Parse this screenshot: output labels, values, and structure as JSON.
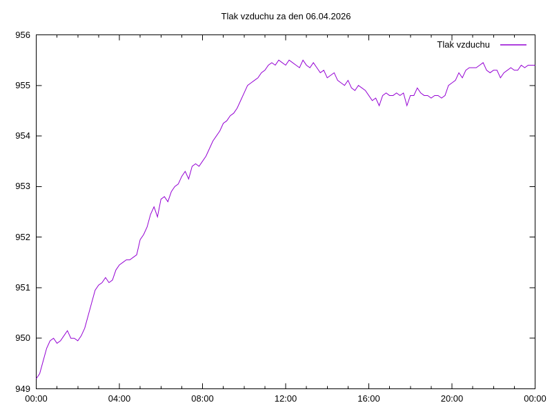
{
  "chart_data": {
    "type": "line",
    "title": "Tlak vzduchu za den 06.04.2026",
    "xlabel": "",
    "ylabel": "",
    "xlim_hours": [
      0,
      24
    ],
    "ylim": [
      949,
      956
    ],
    "grid": false,
    "legend_position": "top-right-inside",
    "x_ticks_major": [
      "00:00",
      "04:00",
      "08:00",
      "12:00",
      "16:00",
      "20:00",
      "00:00"
    ],
    "x_tick_hours": [
      0,
      4,
      8,
      12,
      16,
      20,
      24
    ],
    "x_minor_every_hours": 1,
    "y_ticks": [
      "949",
      "950",
      "951",
      "952",
      "953",
      "954",
      "955",
      "956"
    ],
    "y_tick_values": [
      949,
      950,
      951,
      952,
      953,
      954,
      955,
      956
    ],
    "series": [
      {
        "name": "Tlak vzduchu",
        "color": "#9400d3",
        "x_start_hour": 0,
        "x_step_minutes": 10,
        "values": [
          949.2,
          949.3,
          949.55,
          949.8,
          949.95,
          950.0,
          949.9,
          949.95,
          950.05,
          950.15,
          950.0,
          950.0,
          949.95,
          950.05,
          950.2,
          950.45,
          950.7,
          950.95,
          951.05,
          951.1,
          951.2,
          951.1,
          951.15,
          951.35,
          951.45,
          951.5,
          951.55,
          951.55,
          951.6,
          951.65,
          951.95,
          952.05,
          952.2,
          952.45,
          952.6,
          952.4,
          952.75,
          952.8,
          952.7,
          952.9,
          953.0,
          953.05,
          953.2,
          953.3,
          953.15,
          953.4,
          953.45,
          953.4,
          953.5,
          953.6,
          953.75,
          953.9,
          954.0,
          954.1,
          954.25,
          954.3,
          954.4,
          954.45,
          954.55,
          954.7,
          954.85,
          955.0,
          955.05,
          955.1,
          955.15,
          955.25,
          955.3,
          955.4,
          955.45,
          955.4,
          955.5,
          955.45,
          955.4,
          955.5,
          955.45,
          955.4,
          955.35,
          955.5,
          955.4,
          955.35,
          955.45,
          955.35,
          955.25,
          955.3,
          955.15,
          955.2,
          955.25,
          955.1,
          955.05,
          955.0,
          955.1,
          954.95,
          954.9,
          955.0,
          954.95,
          954.9,
          954.8,
          954.7,
          954.75,
          954.6,
          954.8,
          954.85,
          954.8,
          954.8,
          954.85,
          954.8,
          954.85,
          954.6,
          954.8,
          954.8,
          954.95,
          954.85,
          954.8,
          954.8,
          954.75,
          954.8,
          954.8,
          954.75,
          954.8,
          955.0,
          955.05,
          955.1,
          955.25,
          955.15,
          955.3,
          955.35,
          955.35,
          955.35,
          955.4,
          955.45,
          955.3,
          955.25,
          955.3,
          955.3,
          955.15,
          955.25,
          955.3,
          955.35,
          955.3,
          955.3,
          955.4,
          955.35,
          955.4,
          955.4,
          955.4
        ]
      }
    ]
  },
  "colors": {
    "line": "#9400d3",
    "axis": "#000000",
    "background": "#ffffff"
  }
}
